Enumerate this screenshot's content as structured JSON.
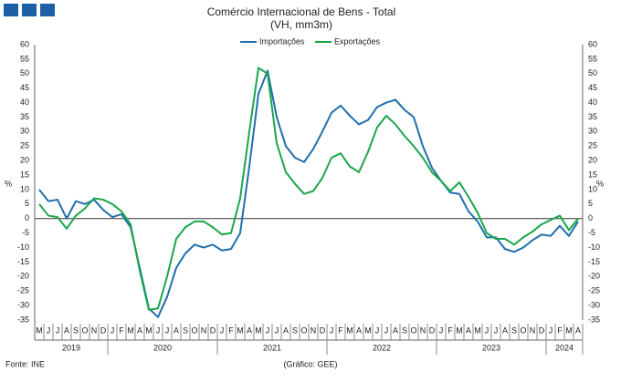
{
  "header": {
    "footer_left": "Fonte: INE",
    "footer_center": "(Gráfico: GEE)"
  },
  "chart_data": {
    "type": "line",
    "title": "Comércio Internacional de Bens - Total",
    "subtitle": "(VH, mm3m)",
    "ylabel": "%",
    "categories": [
      "M",
      "J",
      "J",
      "A",
      "S",
      "O",
      "N",
      "D",
      "J",
      "F",
      "M",
      "A",
      "M",
      "J",
      "J",
      "A",
      "S",
      "O",
      "N",
      "D",
      "J",
      "F",
      "M",
      "A",
      "M",
      "J",
      "J",
      "A",
      "S",
      "O",
      "N",
      "D",
      "J",
      "F",
      "M",
      "A",
      "M",
      "J",
      "J",
      "A",
      "S",
      "O",
      "N",
      "D",
      "J",
      "F",
      "M",
      "A",
      "M",
      "J",
      "J",
      "A",
      "S",
      "O",
      "N",
      "D",
      "J",
      "F",
      "M",
      "A"
    ],
    "years": [
      "2019",
      "2020",
      "2021",
      "2022",
      "2023",
      "2024"
    ],
    "series": [
      {
        "name": "Importações",
        "color": "#1f6fae",
        "values": [
          10,
          6,
          6.5,
          0,
          6,
          5,
          6.5,
          3,
          0.5,
          1.5,
          -3,
          -17,
          -31,
          -34,
          -27,
          -17,
          -12,
          -9,
          -10,
          -9,
          -11,
          -10.5,
          -5,
          18,
          43,
          51,
          35,
          25,
          21,
          19.5,
          24,
          30,
          36.5,
          39,
          35.5,
          32.5,
          34,
          38.5,
          40,
          41,
          37.5,
          35,
          25,
          17.5,
          13,
          9,
          8.5,
          2.5,
          -1,
          -6.5,
          -6.5,
          -10.5,
          -11.5,
          -10,
          -7.5,
          -5.5,
          -6,
          -2.5,
          -6,
          -1
        ]
      },
      {
        "name": "Exportações",
        "color": "#1aa64a",
        "values": [
          5,
          1,
          0.5,
          -3.5,
          1,
          3.5,
          7,
          6.5,
          5,
          2.5,
          -2,
          -18,
          -31.5,
          -31,
          -20,
          -7,
          -3,
          -1,
          -1,
          -3,
          -5.5,
          -5,
          7,
          30,
          52,
          50,
          26,
          16,
          12,
          8.5,
          9.5,
          14,
          21,
          22.5,
          18,
          16,
          23,
          31.5,
          35.5,
          32.5,
          28.5,
          25,
          21,
          16,
          13,
          9.5,
          12.5,
          7.5,
          2,
          -5,
          -7,
          -7,
          -9,
          -6.5,
          -4.5,
          -2,
          -0.5,
          1,
          -4,
          0
        ]
      }
    ],
    "ylim": [
      -35,
      60
    ],
    "yticks": [
      -35,
      -30,
      -25,
      -20,
      -15,
      -10,
      -5,
      0,
      5,
      10,
      15,
      20,
      25,
      30,
      35,
      40,
      45,
      50,
      55,
      60
    ]
  }
}
